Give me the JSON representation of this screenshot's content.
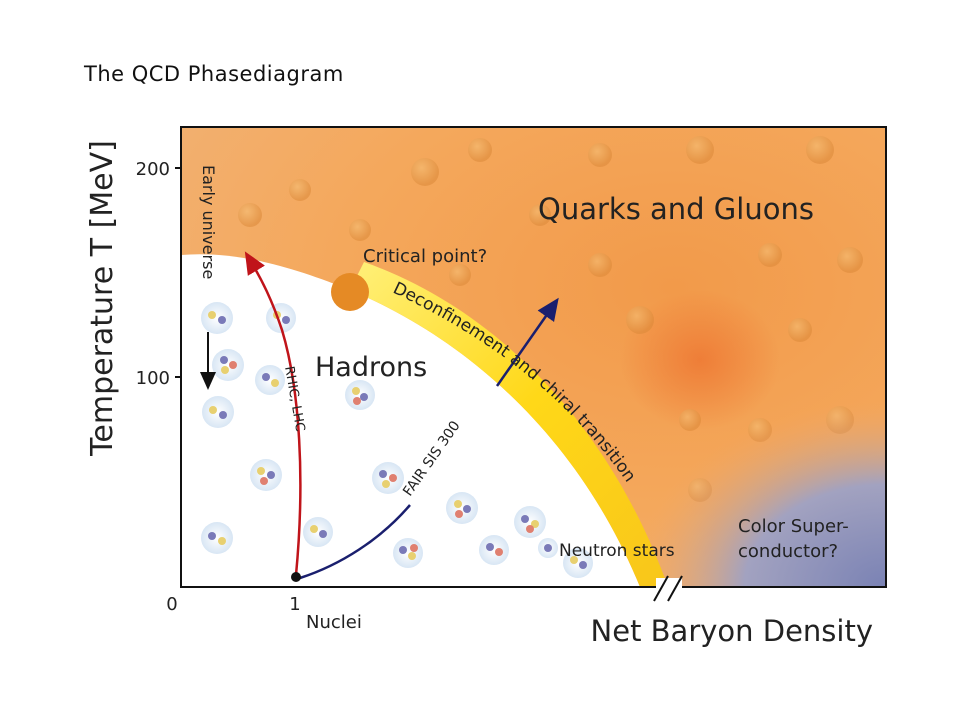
{
  "slide": {
    "title": "The QCD Phasediagram"
  },
  "diagram": {
    "y_axis": {
      "label": "Temperature T [MeV]",
      "ticks": [
        "200",
        "100"
      ]
    },
    "x_axis": {
      "label": "Net Baryon Density",
      "ticks": [
        "0",
        "1"
      ],
      "sublabel": "Nuclei"
    },
    "regions": {
      "qgp": "Quarks and Gluons",
      "hadrons": "Hadrons",
      "color_sc_line1": "Color Super-",
      "color_sc_line2": "conductor?"
    },
    "annotations": {
      "critical_point": "Critical point?",
      "transition": "Deconfinement and chiral transition",
      "early_universe": "Early universe",
      "rhic_lhc": "RHIC, LHC",
      "fair_sis": "FAIR SIS 300",
      "neutron_stars": "Neutron stars"
    },
    "colors": {
      "qgp": "#f0a050",
      "qgp_light": "#f6c088",
      "hadron_bg": "#ffffff",
      "transition_band": "#ffd21a",
      "critical_point": "#e58a25",
      "color_sc": "#8a90b8",
      "rhic_arrow": "#c0141a",
      "fair_arrow": "#1a1f6e",
      "early_arrow": "#111111"
    }
  }
}
